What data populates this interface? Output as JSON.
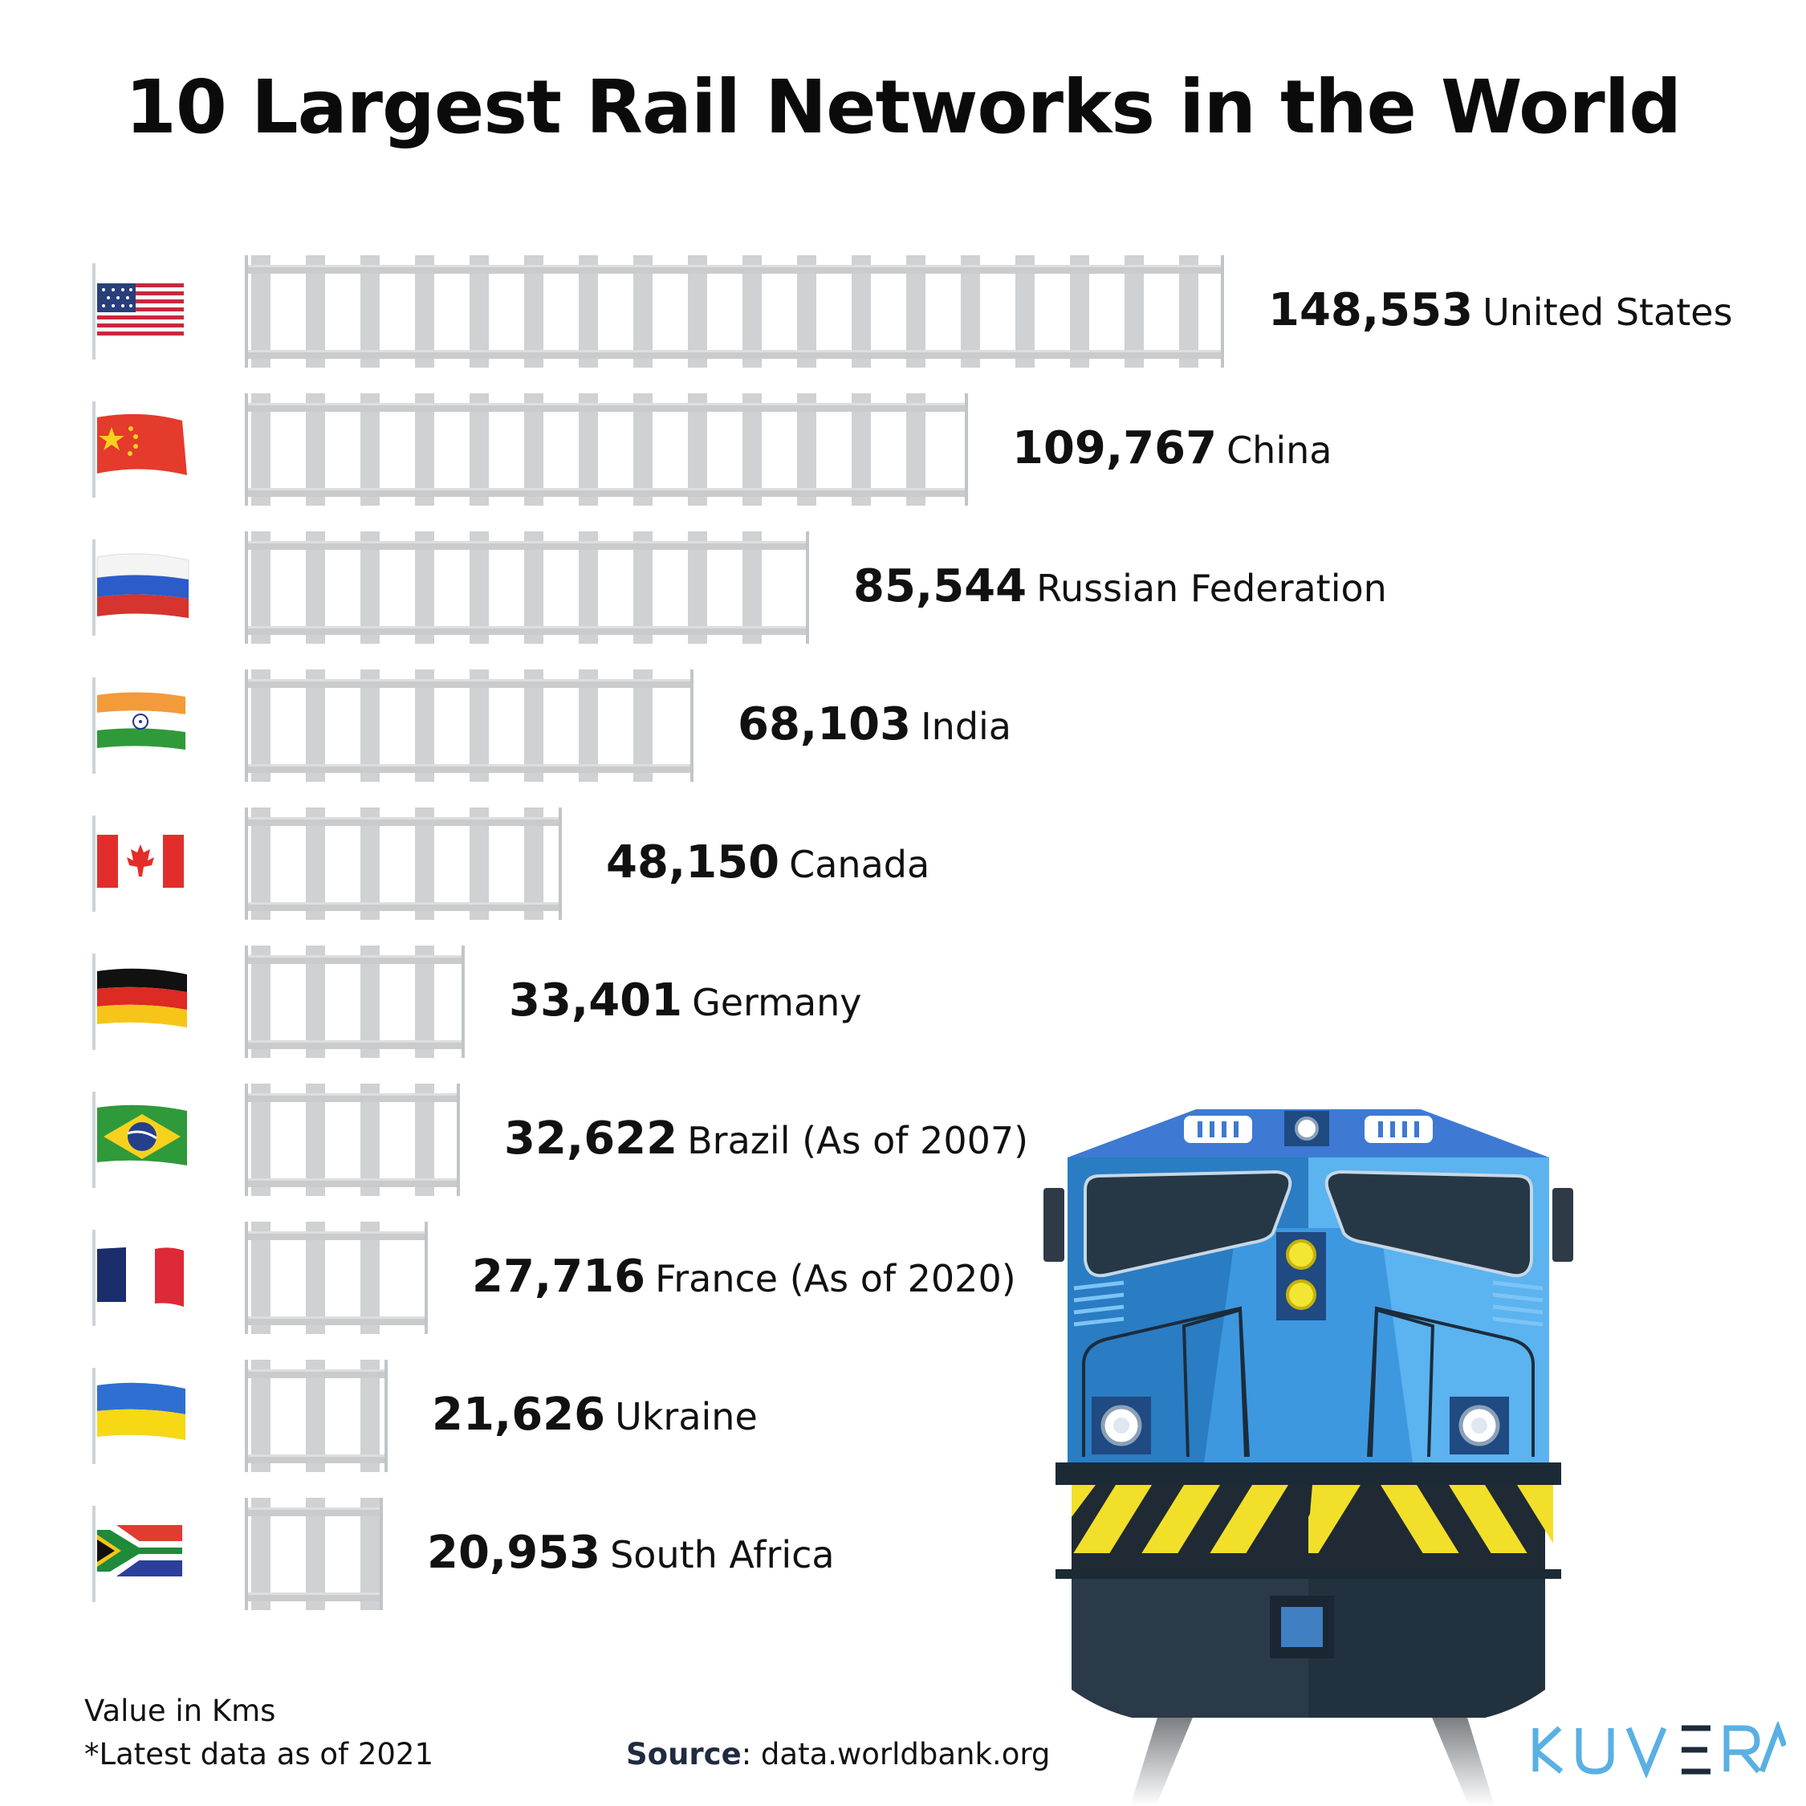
{
  "title": "10 Largest Rail Networks in the World",
  "chart_data": {
    "type": "bar",
    "orientation": "horizontal",
    "title": "10 Largest Rail Networks in the World",
    "unit_note": "Value in Kms",
    "categories": [
      "United States",
      "China",
      "Russian Federation",
      "India",
      "Canada",
      "Germany",
      "Brazil",
      "France",
      "Ukraine",
      "South Africa"
    ],
    "values": [
      148553,
      109767,
      85544,
      68103,
      48150,
      33401,
      32622,
      27716,
      21626,
      20953
    ],
    "value_labels": [
      "148,553",
      "109,767",
      "85,544",
      "68,103",
      "48,150",
      "33,401",
      "32,622",
      "27,716",
      "21,626",
      "20,953"
    ],
    "country_labels": [
      "United States",
      "China",
      "Russian Federation",
      "India",
      "Canada",
      "Germany",
      "Brazil (As of 2007)",
      "France (As of 2020)",
      "Ukraine",
      "South Africa"
    ],
    "flags": [
      "us-flag-icon",
      "china-flag-icon",
      "russia-flag-icon",
      "india-flag-icon",
      "canada-flag-icon",
      "germany-flag-icon",
      "brazil-flag-icon",
      "france-flag-icon",
      "ukraine-flag-icon",
      "south-africa-flag-icon"
    ],
    "xlim": [
      0,
      148553
    ]
  },
  "footer": {
    "unit": "Value in Kms",
    "note": "*Latest data as of 2021",
    "source_label": "Source",
    "source_text": ": data.worldbank.org"
  },
  "brand": {
    "name": "KUVERA",
    "color": "#5ab0e3"
  },
  "colors": {
    "rail": "#c9cbcc",
    "sleeper": "#cfd1d2",
    "locomotive_blue": "#3d8fd9",
    "hazard_yellow": "#f2df2a"
  }
}
